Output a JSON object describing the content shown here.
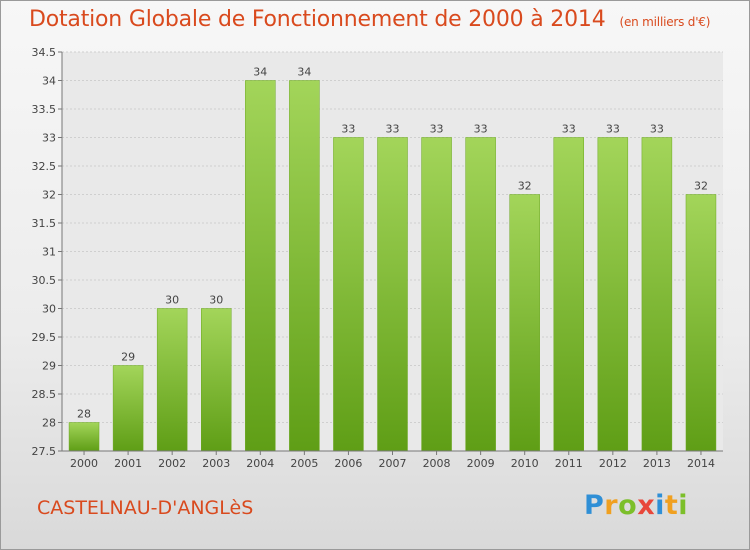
{
  "title": "Dotation Globale de Fonctionnement de 2000 à 2014",
  "unit": "(en milliers d'€)",
  "commune": "CASTELNAU-D'ANGLèS",
  "logo": {
    "letters": [
      {
        "ch": "P",
        "color": "#2f8fd6"
      },
      {
        "ch": "r",
        "color": "#f0a020"
      },
      {
        "ch": "o",
        "color": "#7cbf2a"
      },
      {
        "ch": "x",
        "color": "#e8473a"
      },
      {
        "ch": "i",
        "color": "#2f8fd6"
      },
      {
        "ch": "t",
        "color": "#f0a020"
      },
      {
        "ch": "i",
        "color": "#7cbf2a"
      }
    ]
  },
  "chart_data": {
    "type": "bar",
    "categories": [
      "2000",
      "2001",
      "2002",
      "2003",
      "2004",
      "2005",
      "2006",
      "2007",
      "2008",
      "2009",
      "2010",
      "2011",
      "2012",
      "2013",
      "2014"
    ],
    "values": [
      28,
      29,
      30,
      30,
      34,
      34,
      33,
      33,
      33,
      33,
      32,
      33,
      33,
      33,
      32
    ],
    "yticks": [
      "27.5",
      "28",
      "28.5",
      "29",
      "29.5",
      "30",
      "30.5",
      "31",
      "31.5",
      "32",
      "32.5",
      "33",
      "33.5",
      "34",
      "34.5"
    ],
    "ylim": [
      27.5,
      34.5
    ],
    "grid": true,
    "bar_color_top": "#a3d55a",
    "bar_color_bottom": "#5f9e16"
  }
}
